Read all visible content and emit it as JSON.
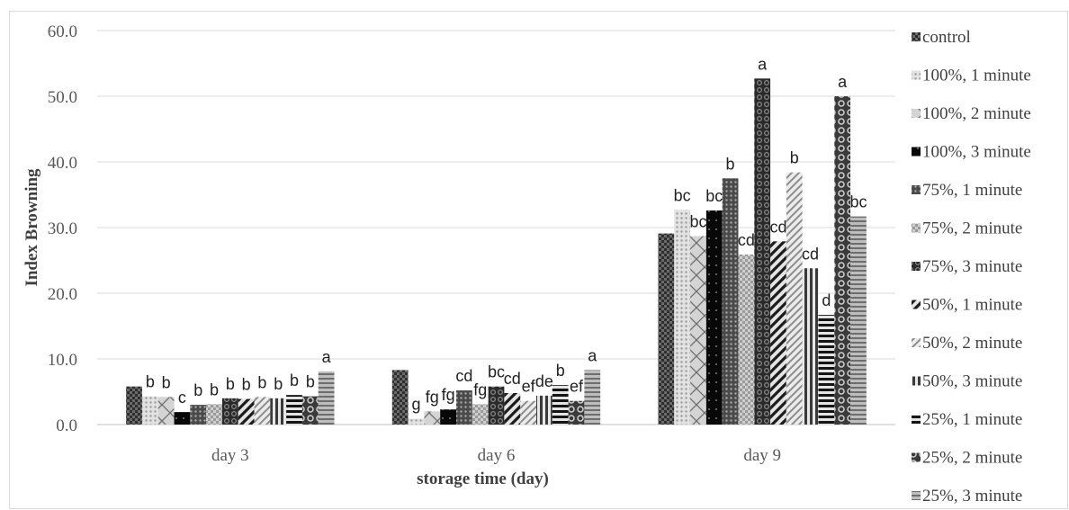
{
  "chart_data": {
    "type": "bar",
    "xlabel": "storage time (day)",
    "ylabel": "Index Browning",
    "ylim": [
      0,
      60
    ],
    "yticks": [
      "0.0",
      "10.0",
      "20.0",
      "30.0",
      "40.0",
      "50.0",
      "60.0"
    ],
    "categories": [
      "day 3",
      "day 6",
      "day 9"
    ],
    "grid": true,
    "legend_position": "right",
    "series": [
      {
        "name": "control",
        "values": [
          5.8,
          8.3,
          29.1
        ],
        "labels": [
          "",
          "",
          ""
        ],
        "pattern": "checker-dark"
      },
      {
        "name": "100%, 1 minute",
        "values": [
          4.3,
          0.9,
          32.7
        ],
        "labels": [
          "b",
          "g",
          "bc"
        ],
        "pattern": "dots-light"
      },
      {
        "name": "100%, 2 minute",
        "values": [
          4.2,
          2.0,
          28.7
        ],
        "labels": [
          "b",
          "fg",
          "bc"
        ],
        "pattern": "cross"
      },
      {
        "name": "100%, 3 minute",
        "values": [
          1.9,
          2.3,
          32.6
        ],
        "labels": [
          "c",
          "fg",
          "bc"
        ],
        "pattern": "black-dots"
      },
      {
        "name": "75%, 1 minute",
        "values": [
          3.0,
          5.2,
          37.5
        ],
        "labels": [
          "b",
          "cd",
          "b"
        ],
        "pattern": "dark-dots"
      },
      {
        "name": "75%, 2 minute",
        "values": [
          3.1,
          3.1,
          25.9
        ],
        "labels": [
          "b",
          "fg",
          "cd"
        ],
        "pattern": "checker-light"
      },
      {
        "name": "75%, 3 minute",
        "values": [
          4.0,
          5.8,
          52.7
        ],
        "labels": [
          "b",
          "bc",
          "a"
        ],
        "pattern": "dark-circles"
      },
      {
        "name": "50%, 1 minute",
        "values": [
          3.9,
          4.8,
          27.9
        ],
        "labels": [
          "b",
          "cd",
          "cd"
        ],
        "pattern": "diag-dark"
      },
      {
        "name": "50%, 2 minute",
        "values": [
          4.2,
          3.6,
          38.4
        ],
        "labels": [
          "b",
          "ef",
          "b"
        ],
        "pattern": "diag-light"
      },
      {
        "name": "50%, 3 minute",
        "values": [
          4.0,
          4.4,
          23.8
        ],
        "labels": [
          "b",
          "de",
          "cd"
        ],
        "pattern": "vstripe"
      },
      {
        "name": "25%, 1 minute",
        "values": [
          4.5,
          6.0,
          16.7
        ],
        "labels": [
          "b",
          "b",
          "d"
        ],
        "pattern": "hstripe-dark"
      },
      {
        "name": "25%, 2 minute",
        "values": [
          4.3,
          3.6,
          50.0
        ],
        "labels": [
          "b",
          "ef",
          "a"
        ],
        "pattern": "rings"
      },
      {
        "name": "25%, 3 minute",
        "values": [
          8.1,
          8.3,
          31.7
        ],
        "labels": [
          "a",
          "a",
          "bc"
        ],
        "pattern": "hstripe-light"
      }
    ]
  }
}
